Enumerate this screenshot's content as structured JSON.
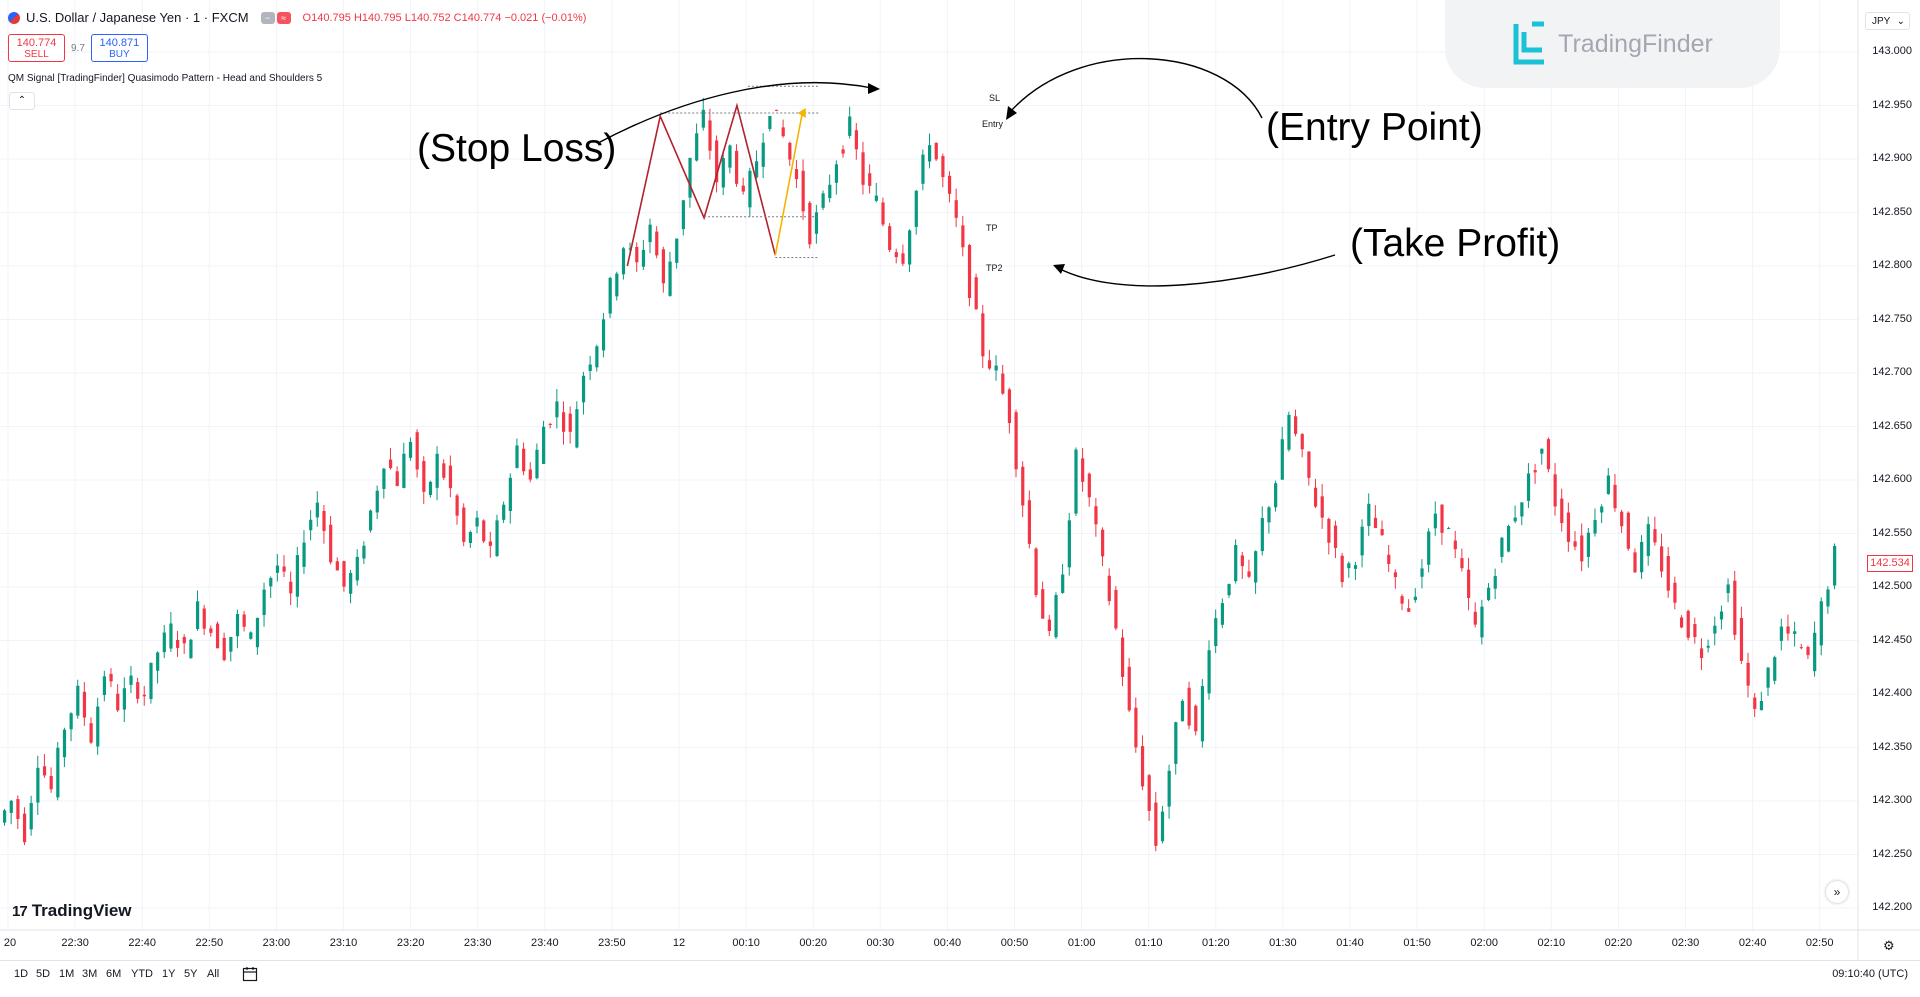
{
  "header": {
    "symbol": "U.S. Dollar / Japanese Yen · 1 · FXCM",
    "ohlc": {
      "o": "O140.795",
      "h": "H140.795",
      "l": "L140.752",
      "c": "C140.774",
      "chg": "−0.021 (−0.01%)"
    }
  },
  "trade": {
    "sell_price": "140.774",
    "sell_label": "SELL",
    "spread": "9.7",
    "buy_price": "140.871",
    "buy_label": "BUY"
  },
  "indicator_title": "QM Signal [TradingFinder] Quasimodo Pattern - Head and Shoulders 5",
  "annotations": {
    "stop_loss": "(Stop Loss)",
    "entry_point": "(Entry Point)",
    "take_profit": "(Take Profit)"
  },
  "levels": {
    "sl": "SL",
    "entry": "Entry",
    "tp": "TP",
    "tp2": "TP2"
  },
  "logo": {
    "text": "TradingFinder"
  },
  "tradingview": {
    "text": "TradingView"
  },
  "currency": "JPY",
  "price_scale": [
    "143.000",
    "142.950",
    "142.900",
    "142.850",
    "142.800",
    "142.750",
    "142.700",
    "142.650",
    "142.600",
    "142.550",
    "142.500",
    "142.450",
    "142.400",
    "142.350",
    "142.300",
    "142.250",
    "142.200"
  ],
  "current_price": "142.534",
  "time_scale": [
    "20",
    "22:30",
    "22:40",
    "22:50",
    "23:00",
    "23:10",
    "23:20",
    "23:30",
    "23:40",
    "23:50",
    "12",
    "00:10",
    "00:20",
    "00:30",
    "00:40",
    "00:50",
    "01:00",
    "01:10",
    "01:20",
    "01:30",
    "01:40",
    "01:50",
    "02:00",
    "02:10",
    "02:20",
    "02:30",
    "02:40",
    "02:50"
  ],
  "ranges": [
    "1D",
    "5D",
    "1M",
    "3M",
    "6M",
    "YTD",
    "1Y",
    "5Y",
    "All"
  ],
  "clock": "09:10:40 (UTC)",
  "colors": {
    "up": "#089981",
    "down": "#f23645",
    "pattern": "#b2222e",
    "entry_leg": "#f4b400"
  },
  "chart_data": {
    "type": "candlestick",
    "ylim": [
      142.18,
      143.05
    ],
    "path": [
      142.28,
      142.3,
      142.27,
      142.34,
      142.31,
      142.37,
      142.4,
      142.36,
      142.42,
      142.39,
      142.41,
      142.4,
      142.44,
      142.46,
      142.44,
      142.48,
      142.46,
      142.44,
      142.47,
      142.45,
      142.5,
      142.52,
      142.49,
      142.55,
      142.58,
      142.53,
      142.5,
      142.52,
      142.57,
      142.62,
      142.6,
      142.64,
      142.58,
      142.62,
      142.59,
      142.54,
      142.56,
      142.53,
      142.58,
      142.63,
      142.6,
      142.65,
      142.67,
      142.64,
      142.7,
      142.73,
      142.78,
      142.82,
      142.8,
      142.84,
      142.78,
      142.83,
      142.9,
      142.94,
      142.88,
      142.91,
      142.86,
      142.9,
      142.95,
      142.92,
      142.88,
      142.83,
      142.86,
      142.9,
      142.93,
      142.88,
      142.86,
      142.82,
      142.81,
      142.87,
      142.92,
      142.88,
      142.84,
      142.78,
      142.72,
      142.7,
      142.66,
      142.58,
      142.5,
      142.45,
      142.52,
      142.62,
      142.58,
      142.52,
      142.46,
      142.38,
      142.32,
      142.26,
      142.33,
      142.4,
      142.36,
      142.45,
      142.49,
      142.53,
      142.5,
      142.56,
      142.6,
      142.66,
      142.62,
      142.58,
      142.55,
      142.51,
      142.53,
      142.57,
      142.54,
      142.5,
      142.48,
      142.52,
      142.57,
      142.55,
      142.51,
      142.46,
      142.5,
      142.54,
      142.57,
      142.6,
      142.63,
      142.58,
      142.55,
      142.53,
      142.57,
      142.6,
      142.56,
      142.52,
      142.55,
      142.52,
      142.48,
      142.46,
      142.44,
      142.47,
      142.5,
      142.43,
      142.38,
      142.42,
      142.46,
      142.45,
      142.43,
      142.48,
      142.53
    ],
    "pattern_points": [
      {
        "t": "00:19",
        "price": 142.94
      },
      {
        "t": "00:27",
        "price": 142.845
      },
      {
        "t": "00:33",
        "price": 142.95
      },
      {
        "t": "00:40",
        "price": 142.81
      }
    ],
    "entry_leg": [
      {
        "t": "00:40",
        "price": 142.81
      },
      {
        "t": "00:45",
        "price": 142.945
      }
    ],
    "levels": {
      "SL": 142.968,
      "Entry": 142.943,
      "TP": 142.846,
      "TP2": 142.808
    }
  }
}
